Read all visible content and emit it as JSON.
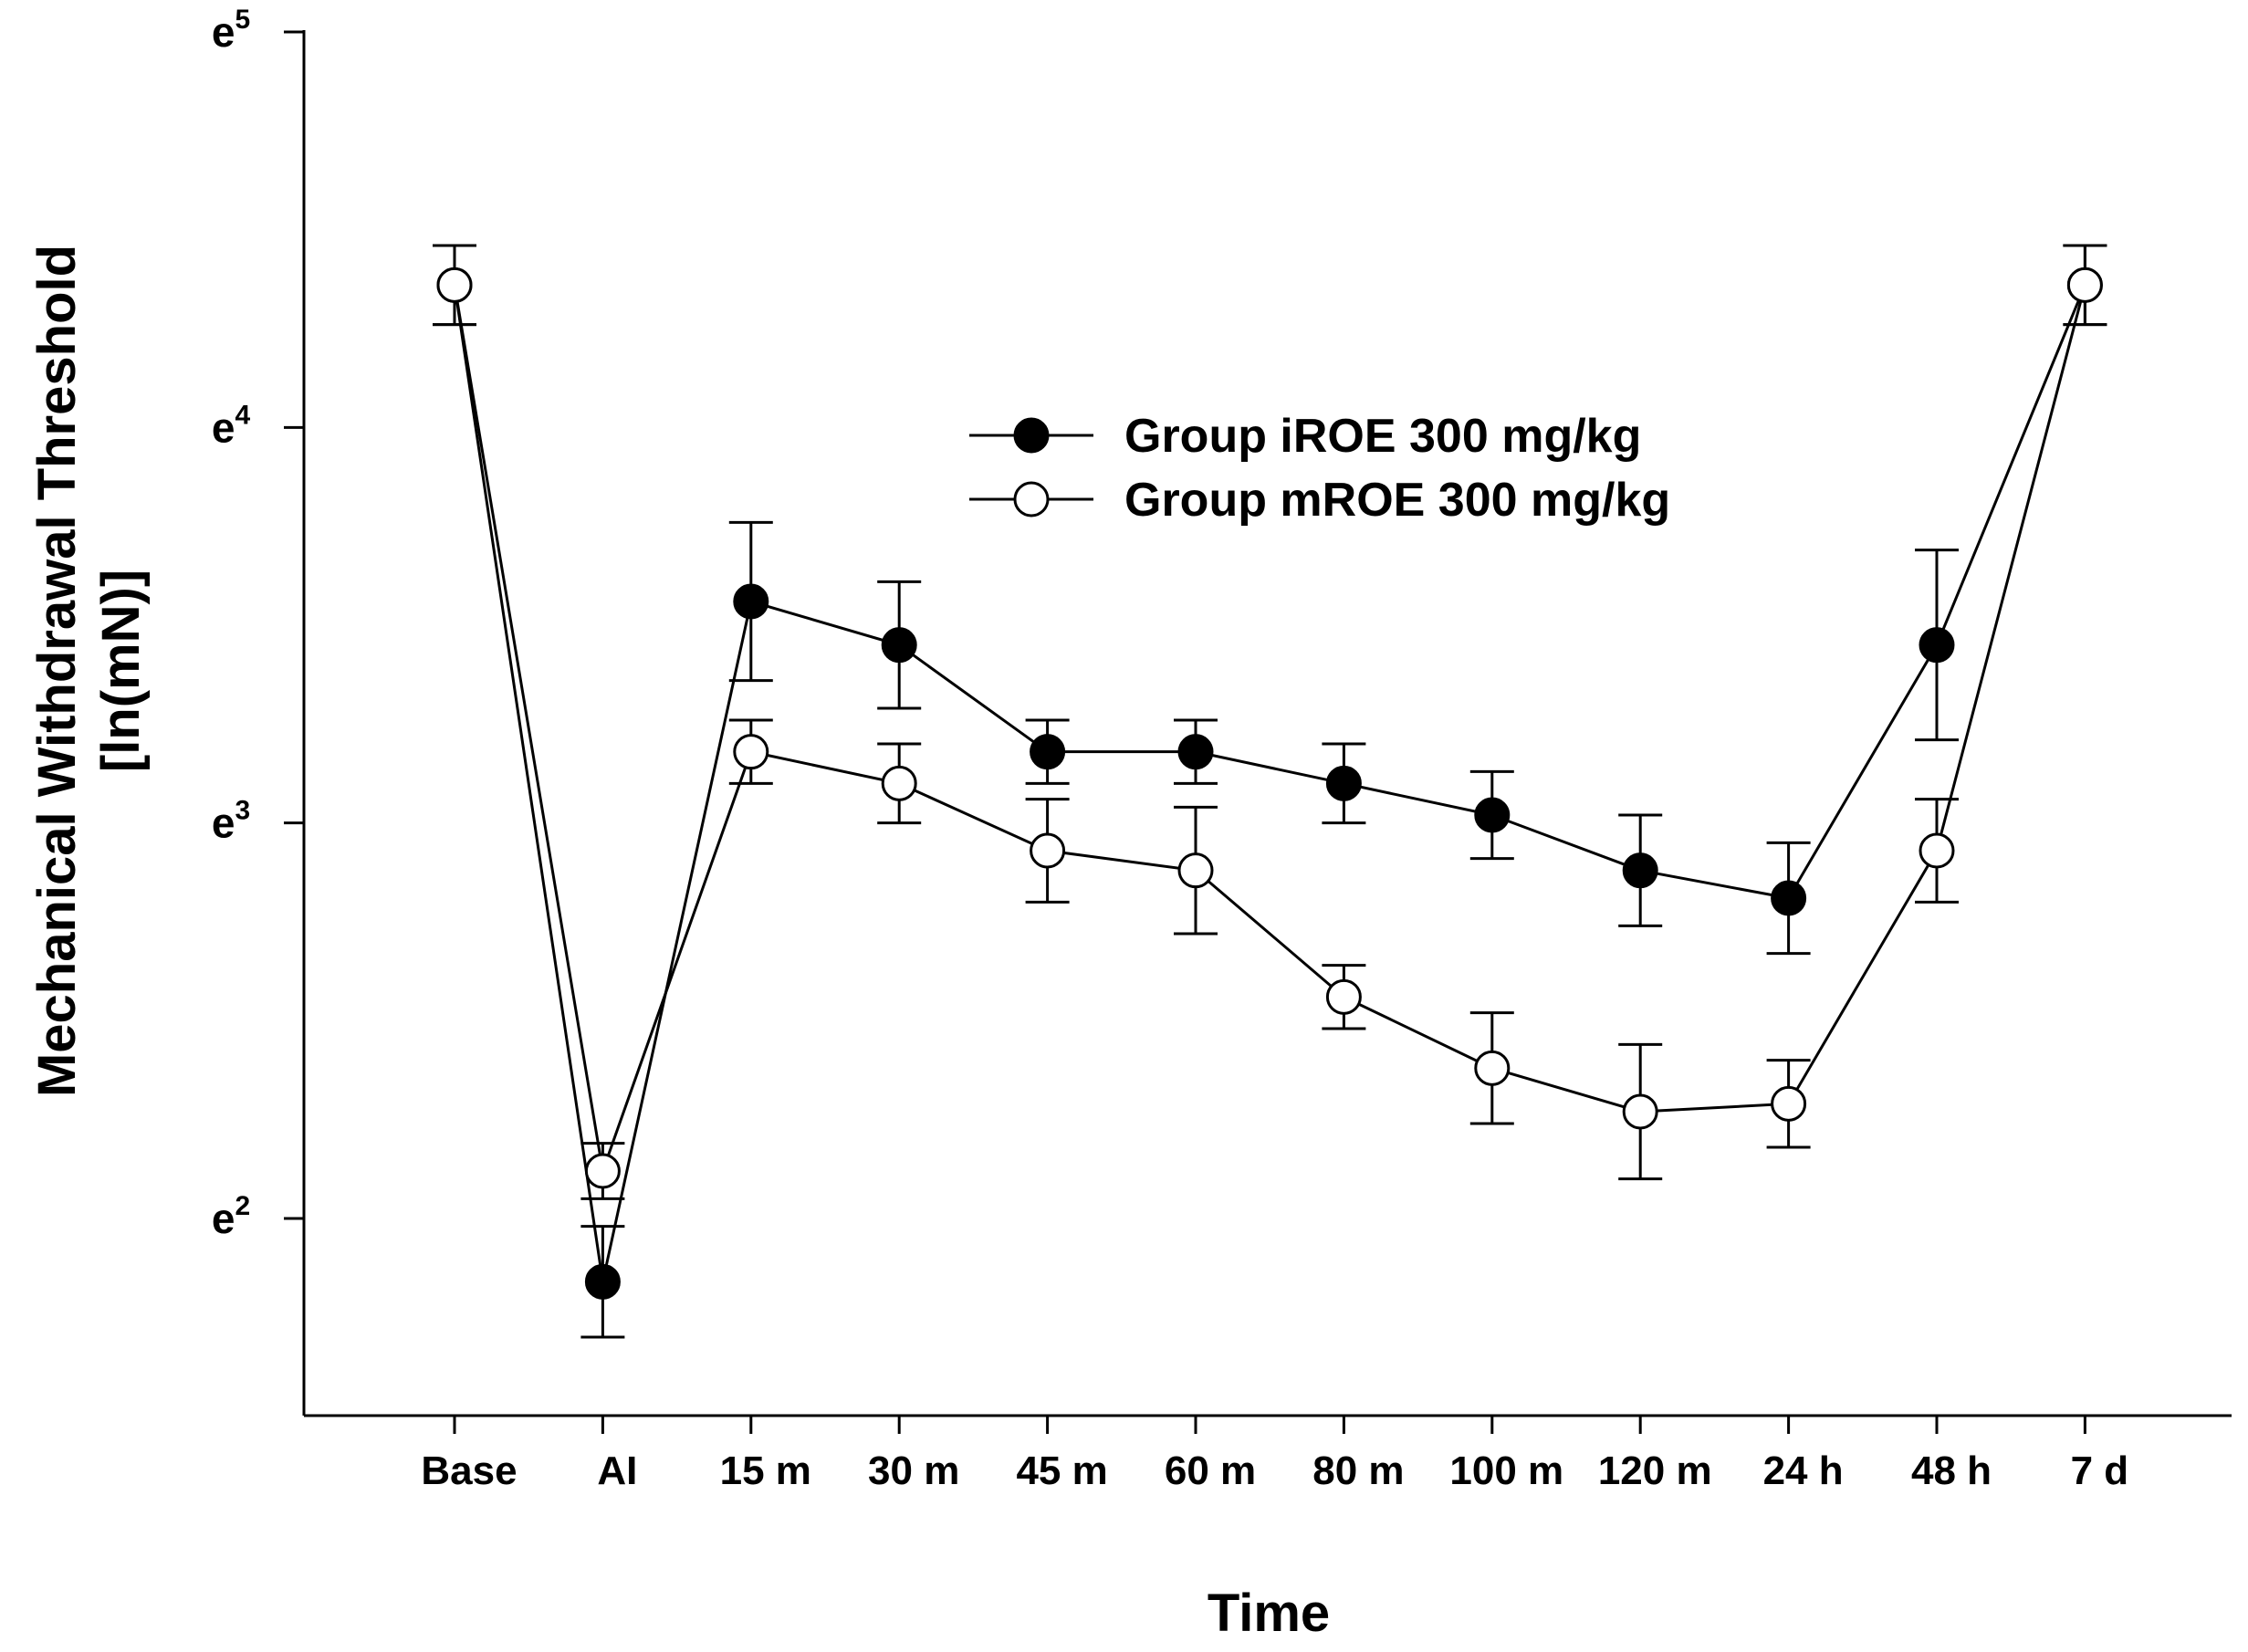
{
  "chart_data": {
    "type": "line",
    "title": "",
    "xlabel": "Time",
    "ylabel": [
      "Mechanical Withdrawal Threshold",
      "[ln(mN)]"
    ],
    "y_scale": "ln",
    "ylim": [
      1.5,
      5.0
    ],
    "yticks": [
      {
        "base": "e",
        "exp": "2",
        "value": 2
      },
      {
        "base": "e",
        "exp": "3",
        "value": 3
      },
      {
        "base": "e",
        "exp": "4",
        "value": 4
      },
      {
        "base": "e",
        "exp": "5",
        "value": 5
      }
    ],
    "categories": [
      "Base",
      "AI",
      "15 m",
      "30 m",
      "45 m",
      "60 m",
      "80 m",
      "100 m",
      "120 m",
      "24 h",
      "48 h",
      "7 d"
    ],
    "legend_position": "upper-center",
    "series": [
      {
        "name": "Group iROE 300 mg/kg",
        "marker": "filled-circle",
        "values": [
          4.36,
          1.84,
          3.56,
          3.45,
          3.18,
          3.18,
          3.1,
          3.02,
          2.88,
          2.81,
          3.45,
          4.36
        ],
        "errors": [
          0.1,
          0.14,
          0.2,
          0.16,
          0.08,
          0.08,
          0.1,
          0.11,
          0.14,
          0.14,
          0.24,
          0.1
        ]
      },
      {
        "name": "Group mROE 300 mg/kg",
        "marker": "open-circle",
        "values": [
          4.36,
          2.12,
          3.18,
          3.1,
          2.93,
          2.88,
          2.56,
          2.38,
          2.27,
          2.29,
          2.93,
          4.36
        ],
        "errors": [
          0.1,
          0.07,
          0.08,
          0.1,
          0.13,
          0.16,
          0.08,
          0.14,
          0.17,
          0.11,
          0.13,
          0.1
        ]
      }
    ]
  }
}
